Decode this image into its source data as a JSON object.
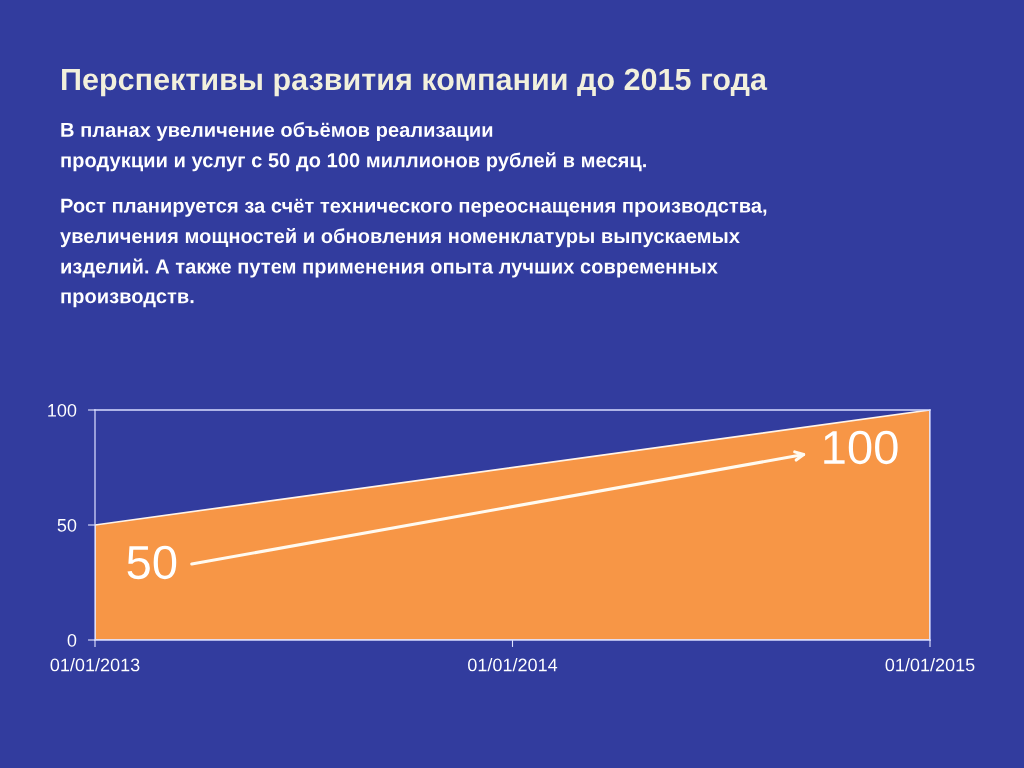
{
  "chart_data": {
    "type": "area",
    "title": "Перспективы развития компании до 2015 года",
    "annotations": [
      "В планах увеличение объёмов реализации\nпродукции и услуг с 50 до 100 миллионов рублей в месяц.",
      "Рост планируется за счёт технического переоснащения производства,\nувеличения мощностей и обновления номенклатуры выпускаемых\nизделий. А также путем применения опыта лучших современных\nпроизводств."
    ],
    "x": [
      "2013-01-01",
      "2015-01-01"
    ],
    "values": [
      50,
      100
    ],
    "color": "#f79646",
    "data_labels": true,
    "xlim": [
      "2013-01-01",
      "2015-01-01"
    ],
    "xticks": [
      {
        "value": "2013-01-01",
        "label": "01/01/2013"
      },
      {
        "value": "2014-01-01",
        "label": "01/01/2014"
      },
      {
        "value": "2015-01-01",
        "label": "01/01/2015"
      }
    ],
    "ylim": [
      0,
      100
    ],
    "yticks": [
      0,
      50,
      100
    ],
    "grid": false
  }
}
